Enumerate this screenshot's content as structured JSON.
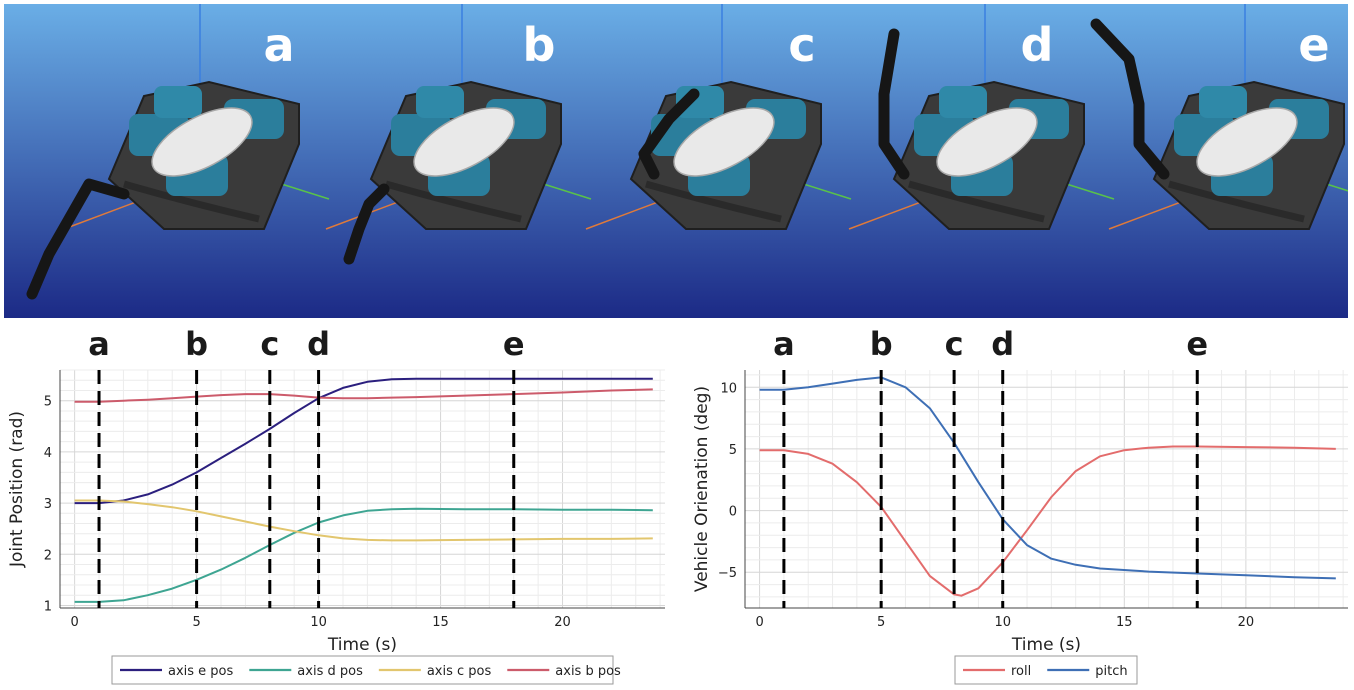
{
  "banner": {
    "frames": [
      "a",
      "b",
      "c",
      "d",
      "e"
    ],
    "sky_top": "#6aaee6",
    "sky_bottom": "#1c2a86"
  },
  "chart_data": [
    {
      "type": "line",
      "xlabel": "Time (s)",
      "ylabel": "Joint Position (rad)",
      "xlim": [
        -0.6,
        24.2
      ],
      "ylim": [
        0.95,
        5.6
      ],
      "xticks": [
        0,
        5,
        10,
        15,
        20
      ],
      "yticks": [
        1,
        2,
        3,
        4,
        5
      ],
      "grid": true,
      "legend_position": "bottom",
      "events": [
        {
          "label": "a",
          "x": 1
        },
        {
          "label": "b",
          "x": 5
        },
        {
          "label": "c",
          "x": 8
        },
        {
          "label": "d",
          "x": 10
        },
        {
          "label": "e",
          "x": 18
        }
      ],
      "series": [
        {
          "name": "axis e pos",
          "color": "#2b1f7e",
          "x": [
            0,
            1,
            2,
            3,
            4,
            5,
            6,
            7,
            8,
            9,
            10,
            11,
            12,
            13,
            14,
            16,
            18,
            20,
            22,
            23.7
          ],
          "y": [
            3.0,
            3.0,
            3.05,
            3.17,
            3.36,
            3.6,
            3.88,
            4.16,
            4.45,
            4.76,
            5.05,
            5.25,
            5.37,
            5.42,
            5.43,
            5.43,
            5.43,
            5.43,
            5.43,
            5.43
          ]
        },
        {
          "name": "axis d pos",
          "color": "#3ea592",
          "x": [
            0,
            1,
            2,
            3,
            4,
            5,
            6,
            7,
            8,
            9,
            10,
            11,
            12,
            13,
            14,
            16,
            18,
            20,
            22,
            23.7
          ],
          "y": [
            1.07,
            1.07,
            1.1,
            1.2,
            1.33,
            1.5,
            1.7,
            1.93,
            2.18,
            2.42,
            2.62,
            2.76,
            2.85,
            2.88,
            2.89,
            2.88,
            2.88,
            2.87,
            2.87,
            2.86
          ]
        },
        {
          "name": "axis c pos",
          "color": "#e2c66e",
          "x": [
            0,
            1,
            2,
            3,
            4,
            5,
            6,
            7,
            8,
            9,
            10,
            11,
            12,
            13,
            14,
            16,
            18,
            20,
            22,
            23.7
          ],
          "y": [
            3.05,
            3.05,
            3.03,
            2.98,
            2.92,
            2.84,
            2.74,
            2.64,
            2.54,
            2.45,
            2.37,
            2.31,
            2.28,
            2.27,
            2.27,
            2.28,
            2.29,
            2.3,
            2.3,
            2.31
          ]
        },
        {
          "name": "axis b pos",
          "color": "#cc5b6b",
          "x": [
            0,
            1,
            2,
            3,
            4,
            5,
            6,
            7,
            8,
            9,
            10,
            11,
            12,
            13,
            14,
            16,
            18,
            20,
            22,
            23.7
          ],
          "y": [
            4.98,
            4.98,
            5.0,
            5.02,
            5.05,
            5.08,
            5.11,
            5.13,
            5.13,
            5.1,
            5.06,
            5.05,
            5.05,
            5.06,
            5.07,
            5.1,
            5.13,
            5.16,
            5.2,
            5.22
          ]
        }
      ]
    },
    {
      "type": "line",
      "xlabel": "Time (s)",
      "ylabel": "Vehicle Orienation (deg)",
      "xlim": [
        -0.6,
        24.2
      ],
      "ylim": [
        -7.9,
        11.4
      ],
      "xticks": [
        0,
        5,
        10,
        15,
        20
      ],
      "yticks": [
        -5,
        0,
        5,
        10
      ],
      "grid": true,
      "legend_position": "bottom",
      "events": [
        {
          "label": "a",
          "x": 1
        },
        {
          "label": "b",
          "x": 5
        },
        {
          "label": "c",
          "x": 8
        },
        {
          "label": "d",
          "x": 10
        },
        {
          "label": "e",
          "x": 18
        }
      ],
      "series": [
        {
          "name": "roll",
          "color": "#e36c6c",
          "x": [
            0,
            1,
            2,
            3,
            4,
            5,
            6,
            7,
            8,
            8.3,
            9,
            10,
            11,
            12,
            13,
            14,
            15,
            16,
            17,
            18,
            20,
            22,
            23.7
          ],
          "y": [
            4.9,
            4.9,
            4.6,
            3.8,
            2.3,
            0.3,
            -2.5,
            -5.3,
            -6.8,
            -6.9,
            -6.3,
            -4.2,
            -1.6,
            1.1,
            3.2,
            4.4,
            4.9,
            5.1,
            5.2,
            5.2,
            5.15,
            5.1,
            5.0
          ]
        },
        {
          "name": "pitch",
          "color": "#3e6fb5",
          "x": [
            0,
            1,
            2,
            3,
            4,
            5,
            6,
            7,
            8,
            9,
            10,
            11,
            12,
            13,
            14,
            16,
            18,
            20,
            22,
            23.7
          ],
          "y": [
            9.8,
            9.8,
            10.0,
            10.3,
            10.6,
            10.8,
            10.0,
            8.3,
            5.5,
            2.3,
            -0.7,
            -2.8,
            -3.9,
            -4.4,
            -4.7,
            -4.95,
            -5.1,
            -5.25,
            -5.4,
            -5.5
          ]
        }
      ]
    }
  ]
}
